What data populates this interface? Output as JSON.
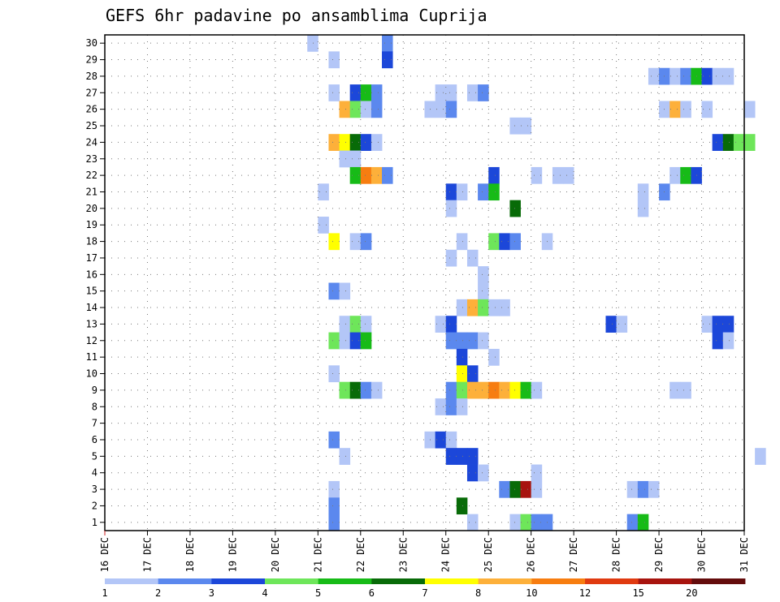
{
  "chart_data": {
    "type": "heatmap",
    "title": "GEFS 6hr padavine po ansamblima Cuprija",
    "xlabel": "",
    "ylabel": "",
    "x_start_day": 16,
    "x_end_day": 31,
    "x_tick_labels": [
      "16 DEC",
      "17 DEC",
      "18 DEC",
      "19 DEC",
      "20 DEC",
      "21 DEC",
      "22 DEC",
      "23 DEC",
      "24 DEC",
      "25 DEC",
      "26 DEC",
      "27 DEC",
      "28 DEC",
      "29 DEC",
      "30 DEC",
      "31 DEC"
    ],
    "y_tick_labels": [
      "1",
      "2",
      "3",
      "4",
      "5",
      "6",
      "7",
      "8",
      "9",
      "10",
      "11",
      "12",
      "13",
      "14",
      "15",
      "16",
      "17",
      "18",
      "19",
      "20",
      "21",
      "22",
      "23",
      "24",
      "25",
      "26",
      "27",
      "28",
      "29",
      "30"
    ],
    "ylim": [
      1,
      30
    ],
    "grid": true,
    "colorbar": {
      "labels": [
        "1",
        "2",
        "3",
        "4",
        "5",
        "6",
        "7",
        "8",
        "10",
        "12",
        "15",
        "20"
      ],
      "colors": [
        "#b3c6f7",
        "#5b88ee",
        "#1c47d9",
        "#6ee65a",
        "#17bb17",
        "#086b08",
        "#ffff00",
        "#fdb03a",
        "#f77d10",
        "#e03a10",
        "#a8140e",
        "#640c0c"
      ]
    },
    "cell_value_units": "class 0 = below 1; classes 1-12 follow the colorbar bins; x = 6-hour step starting 16 DEC 00Z",
    "cells": [
      [
        19,
        30,
        1
      ],
      [
        26,
        30,
        2
      ],
      [
        21,
        29,
        1
      ],
      [
        26,
        29,
        3
      ],
      [
        51,
        28,
        1
      ],
      [
        52,
        28,
        2
      ],
      [
        53,
        28,
        1
      ],
      [
        54,
        28,
        2
      ],
      [
        55,
        28,
        5
      ],
      [
        56,
        28,
        3
      ],
      [
        57,
        28,
        1
      ],
      [
        58,
        28,
        1
      ],
      [
        21,
        27,
        1
      ],
      [
        23,
        27,
        3
      ],
      [
        24,
        27,
        5
      ],
      [
        25,
        27,
        2
      ],
      [
        31,
        27,
        1
      ],
      [
        32,
        27,
        1
      ],
      [
        34,
        27,
        1
      ],
      [
        35,
        27,
        2
      ],
      [
        22,
        26,
        8
      ],
      [
        23,
        26,
        4
      ],
      [
        24,
        26,
        1
      ],
      [
        25,
        26,
        2
      ],
      [
        30,
        26,
        1
      ],
      [
        31,
        26,
        1
      ],
      [
        32,
        26,
        2
      ],
      [
        52,
        26,
        1
      ],
      [
        53,
        26,
        8
      ],
      [
        54,
        26,
        1
      ],
      [
        56,
        26,
        1
      ],
      [
        60,
        26,
        1
      ],
      [
        38,
        25,
        1
      ],
      [
        39,
        25,
        1
      ],
      [
        21,
        24,
        8
      ],
      [
        22,
        24,
        7
      ],
      [
        23,
        24,
        6
      ],
      [
        24,
        24,
        3
      ],
      [
        25,
        24,
        1
      ],
      [
        57,
        24,
        3
      ],
      [
        58,
        24,
        6
      ],
      [
        59,
        24,
        4
      ],
      [
        60,
        24,
        4
      ],
      [
        22,
        23,
        1
      ],
      [
        23,
        23,
        1
      ],
      [
        23,
        22,
        5
      ],
      [
        24,
        22,
        9
      ],
      [
        25,
        22,
        8
      ],
      [
        26,
        22,
        2
      ],
      [
        36,
        22,
        3
      ],
      [
        40,
        22,
        1
      ],
      [
        42,
        22,
        1
      ],
      [
        43,
        22,
        1
      ],
      [
        53,
        22,
        1
      ],
      [
        54,
        22,
        5
      ],
      [
        55,
        22,
        3
      ],
      [
        20,
        21,
        1
      ],
      [
        32,
        21,
        3
      ],
      [
        33,
        21,
        1
      ],
      [
        35,
        21,
        2
      ],
      [
        36,
        21,
        5
      ],
      [
        50,
        21,
        1
      ],
      [
        52,
        21,
        2
      ],
      [
        32,
        20,
        1
      ],
      [
        38,
        20,
        6
      ],
      [
        50,
        20,
        1
      ],
      [
        20,
        19,
        1
      ],
      [
        21,
        18,
        7
      ],
      [
        23,
        18,
        1
      ],
      [
        24,
        18,
        2
      ],
      [
        33,
        18,
        1
      ],
      [
        36,
        18,
        4
      ],
      [
        37,
        18,
        3
      ],
      [
        38,
        18,
        2
      ],
      [
        41,
        18,
        1
      ],
      [
        32,
        17,
        1
      ],
      [
        34,
        17,
        1
      ],
      [
        35,
        16,
        1
      ],
      [
        21,
        15,
        2
      ],
      [
        22,
        15,
        1
      ],
      [
        35,
        15,
        1
      ],
      [
        33,
        14,
        1
      ],
      [
        34,
        14,
        8
      ],
      [
        35,
        14,
        4
      ],
      [
        36,
        14,
        1
      ],
      [
        37,
        14,
        1
      ],
      [
        22,
        13,
        1
      ],
      [
        23,
        13,
        4
      ],
      [
        24,
        13,
        1
      ],
      [
        31,
        13,
        1
      ],
      [
        32,
        13,
        3
      ],
      [
        47,
        13,
        3
      ],
      [
        48,
        13,
        1
      ],
      [
        56,
        13,
        1
      ],
      [
        57,
        13,
        3
      ],
      [
        58,
        13,
        3
      ],
      [
        21,
        12,
        4
      ],
      [
        22,
        12,
        1
      ],
      [
        23,
        12,
        3
      ],
      [
        24,
        12,
        5
      ],
      [
        32,
        12,
        2
      ],
      [
        33,
        12,
        2
      ],
      [
        34,
        12,
        2
      ],
      [
        35,
        12,
        1
      ],
      [
        57,
        12,
        3
      ],
      [
        58,
        12,
        1
      ],
      [
        33,
        11,
        3
      ],
      [
        36,
        11,
        1
      ],
      [
        21,
        10,
        1
      ],
      [
        33,
        10,
        7
      ],
      [
        34,
        10,
        3
      ],
      [
        22,
        9,
        4
      ],
      [
        23,
        9,
        6
      ],
      [
        24,
        9,
        2
      ],
      [
        25,
        9,
        1
      ],
      [
        32,
        9,
        2
      ],
      [
        33,
        9,
        4
      ],
      [
        34,
        9,
        8
      ],
      [
        35,
        9,
        8
      ],
      [
        36,
        9,
        9
      ],
      [
        37,
        9,
        8
      ],
      [
        38,
        9,
        7
      ],
      [
        39,
        9,
        5
      ],
      [
        40,
        9,
        1
      ],
      [
        53,
        9,
        1
      ],
      [
        54,
        9,
        1
      ],
      [
        31,
        8,
        1
      ],
      [
        32,
        8,
        2
      ],
      [
        33,
        8,
        1
      ],
      [
        30,
        6,
        1
      ],
      [
        31,
        6,
        3
      ],
      [
        32,
        6,
        1
      ],
      [
        21,
        6,
        2
      ],
      [
        22,
        5,
        1
      ],
      [
        32,
        5,
        3
      ],
      [
        33,
        5,
        3
      ],
      [
        34,
        5,
        3
      ],
      [
        61,
        5,
        1
      ],
      [
        34,
        4,
        3
      ],
      [
        35,
        4,
        1
      ],
      [
        40,
        4,
        1
      ],
      [
        21,
        3,
        1
      ],
      [
        37,
        3,
        2
      ],
      [
        38,
        3,
        6
      ],
      [
        39,
        3,
        11
      ],
      [
        40,
        3,
        1
      ],
      [
        49,
        3,
        1
      ],
      [
        50,
        3,
        2
      ],
      [
        51,
        3,
        1
      ],
      [
        21,
        2,
        2
      ],
      [
        33,
        2,
        6
      ],
      [
        21,
        1,
        2
      ],
      [
        34,
        1,
        1
      ],
      [
        38,
        1,
        1
      ],
      [
        39,
        1,
        4
      ],
      [
        40,
        1,
        2
      ],
      [
        41,
        1,
        2
      ],
      [
        49,
        1,
        2
      ],
      [
        50,
        1,
        5
      ]
    ]
  }
}
